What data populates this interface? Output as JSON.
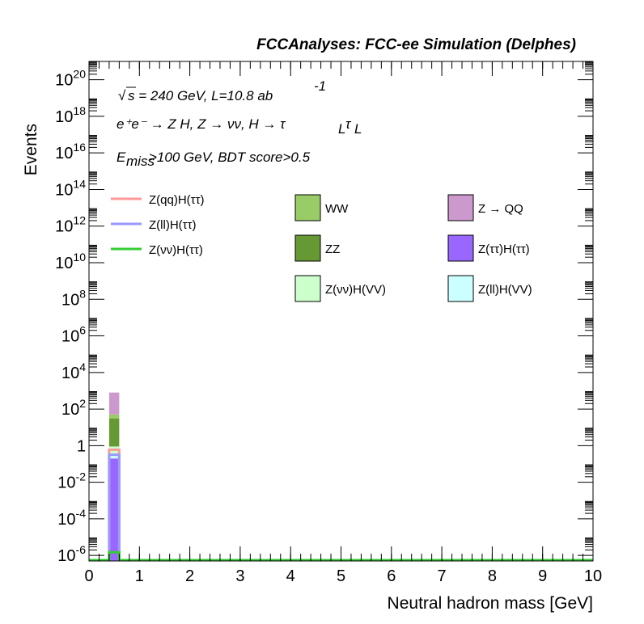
{
  "chart_data": {
    "type": "bar",
    "title": "FCCAnalyses: FCC-ee Simulation (Delphes)",
    "xlabel": "Neutral hadron mass [GeV]",
    "ylabel": "Events",
    "xlim": [
      0,
      10
    ],
    "ylim": [
      5e-07,
      1e+21
    ],
    "yscale": "log",
    "x_ticks": [
      0,
      1,
      2,
      3,
      4,
      5,
      6,
      7,
      8,
      9,
      10
    ],
    "y_tick_exponents": [
      -6,
      -4,
      -2,
      0,
      2,
      4,
      6,
      8,
      10,
      12,
      14,
      16,
      18,
      20
    ],
    "annotations": {
      "sqrt_s": "s = 240 GeV, L=10.8 ab",
      "sqrt_symbol": "√",
      "lumi_exp": "-1",
      "process": "e⁺e⁻ → Z H, Z → νν, H → τ",
      "tau_sub": "L",
      "cut_pre": "E",
      "cut_sub": "miss",
      "cut_post": ">100 GeV, BDT score>0.5"
    },
    "bin": {
      "x_low": 0.4,
      "x_high": 0.6
    },
    "stack": [
      {
        "name": "Z(ττ)H(ττ)",
        "value": 0.2,
        "color": "#9966ff"
      },
      {
        "name": "Z(ll)H(VV)",
        "value": 0.1,
        "color": "#ccffff"
      },
      {
        "name": "Z(νν)H(VV)",
        "value": 0.6,
        "color": "#ccffcc"
      },
      {
        "name": "ZZ",
        "value": 30,
        "color": "#669933"
      },
      {
        "name": "WW",
        "value": 20,
        "color": "#99cc66"
      },
      {
        "name": "Z → QQ",
        "value": 750,
        "color": "#cc99cc"
      }
    ],
    "signals": [
      {
        "name": "Z(qq)H(ττ)",
        "value": 0.6,
        "color": "#ff9999"
      },
      {
        "name": "Z(ll)H(ττ)",
        "value": 0.32,
        "color": "#9999ff"
      },
      {
        "name": "Z(νν)H(ττ)",
        "value": 1.5e-06,
        "color": "#33cc33"
      }
    ],
    "legend_lines": [
      "Z(qq)H(ττ)",
      "Z(ll)H(ττ)",
      "Z(νν)H(ττ)"
    ],
    "legend_boxes": [
      "WW",
      "Z → QQ",
      "ZZ",
      "Z(ττ)H(ττ)",
      "Z(νν)H(VV)",
      "Z(ll)H(VV)"
    ],
    "legend_placement": "top"
  }
}
